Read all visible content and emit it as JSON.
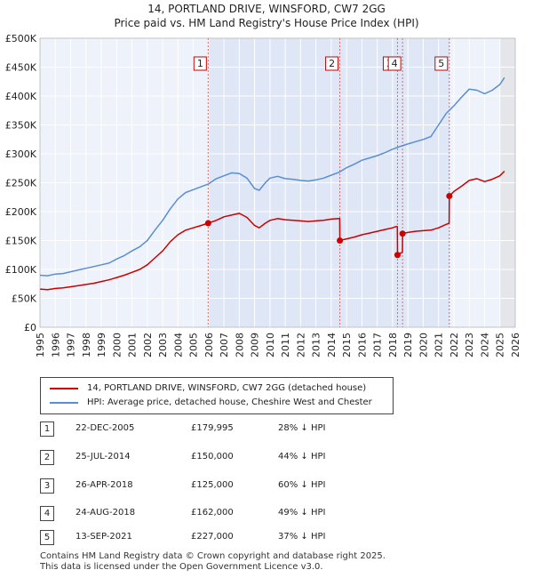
{
  "title_line1": "14, PORTLAND DRIVE, WINSFORD, CW7 2GG",
  "title_line2": "Price paid vs. HM Land Registry's House Price Index (HPI)",
  "legend": {
    "property_label": "14, PORTLAND DRIVE, WINSFORD, CW7 2GG (detached house)",
    "hpi_label": "HPI: Average price, detached house, Cheshire West and Chester",
    "property_color": "#cc0000",
    "hpi_color": "#5b8ed1"
  },
  "transactions": [
    {
      "num": "1",
      "date": "22-DEC-2005",
      "price": "£179,995",
      "hpi": "28% ↓ HPI"
    },
    {
      "num": "2",
      "date": "25-JUL-2014",
      "price": "£150,000",
      "hpi": "44% ↓ HPI"
    },
    {
      "num": "3",
      "date": "26-APR-2018",
      "price": "£125,000",
      "hpi": "60% ↓ HPI"
    },
    {
      "num": "4",
      "date": "24-AUG-2018",
      "price": "£162,000",
      "hpi": "49% ↓ HPI"
    },
    {
      "num": "5",
      "date": "13-SEP-2021",
      "price": "£227,000",
      "hpi": "37% ↓ HPI"
    }
  ],
  "footer_line1": "Contains HM Land Registry data © Crown copyright and database right 2025.",
  "footer_line2": "This data is licensed under the Open Government Licence v3.0.",
  "chart_data": {
    "type": "line",
    "xlim": [
      1995,
      2026
    ],
    "ylim": [
      0,
      500000
    ],
    "x_ticks": [
      1995,
      1996,
      1997,
      1998,
      1999,
      2000,
      2001,
      2002,
      2003,
      2004,
      2005,
      2006,
      2007,
      2008,
      2009,
      2010,
      2011,
      2012,
      2013,
      2014,
      2015,
      2016,
      2017,
      2018,
      2019,
      2020,
      2021,
      2022,
      2023,
      2024,
      2025,
      2026
    ],
    "y_ticks": [
      {
        "value": 0,
        "label": "£0"
      },
      {
        "value": 50000,
        "label": "£50K"
      },
      {
        "value": 100000,
        "label": "£100K"
      },
      {
        "value": 150000,
        "label": "£150K"
      },
      {
        "value": 200000,
        "label": "£200K"
      },
      {
        "value": 250000,
        "label": "£250K"
      },
      {
        "value": 300000,
        "label": "£300K"
      },
      {
        "value": 350000,
        "label": "£350K"
      },
      {
        "value": 400000,
        "label": "£400K"
      },
      {
        "value": 450000,
        "label": "£450K"
      },
      {
        "value": 500000,
        "label": "£500K"
      }
    ],
    "grid": true,
    "sale_markers": [
      {
        "label": "1",
        "x": 2005.97,
        "y": 179995
      },
      {
        "label": "2",
        "x": 2014.56,
        "y": 150000
      },
      {
        "label": "3",
        "x": 2018.32,
        "y": 125000
      },
      {
        "label": "4",
        "x": 2018.65,
        "y": 162000
      },
      {
        "label": "5",
        "x": 2021.7,
        "y": 227000
      }
    ],
    "series": [
      {
        "name": "HPI: Average price, detached house, Cheshire West and Chester",
        "x": [
          1995.0,
          1995.5,
          1996.0,
          1996.5,
          1997.0,
          1997.5,
          1998.0,
          1998.5,
          1999.0,
          1999.5,
          2000.0,
          2000.5,
          2001.0,
          2001.5,
          2002.0,
          2002.5,
          2003.0,
          2003.5,
          2004.0,
          2004.5,
          2005.0,
          2005.5,
          2006.0,
          2006.5,
          2007.0,
          2007.5,
          2008.0,
          2008.5,
          2009.0,
          2009.3,
          2009.7,
          2010.0,
          2010.5,
          2011.0,
          2011.5,
          2012.0,
          2012.5,
          2013.0,
          2013.5,
          2014.0,
          2014.5,
          2015.0,
          2015.5,
          2016.0,
          2016.5,
          2017.0,
          2017.5,
          2018.0,
          2018.5,
          2019.0,
          2019.5,
          2020.0,
          2020.5,
          2021.0,
          2021.5,
          2022.0,
          2022.5,
          2023.0,
          2023.5,
          2024.0,
          2024.5,
          2025.0,
          2025.3
        ],
        "y": [
          90000,
          89000,
          92000,
          93000,
          96000,
          99000,
          102000,
          105000,
          108000,
          111000,
          118000,
          124000,
          132000,
          139000,
          150000,
          168000,
          185000,
          205000,
          222000,
          233000,
          238000,
          243000,
          248000,
          257000,
          262000,
          267000,
          266000,
          258000,
          240000,
          237000,
          250000,
          258000,
          261000,
          257000,
          256000,
          254000,
          253000,
          255000,
          258000,
          263000,
          268000,
          276000,
          282000,
          289000,
          293000,
          297000,
          302000,
          308000,
          313000,
          317000,
          321000,
          325000,
          330000,
          350000,
          370000,
          383000,
          398000,
          412000,
          410000,
          404000,
          410000,
          420000,
          432000
        ]
      },
      {
        "name": "14, PORTLAND DRIVE, WINSFORD, CW7 2GG (detached house)",
        "x": [
          1995.0,
          1995.5,
          1996.0,
          1996.5,
          1997.0,
          1997.5,
          1998.0,
          1998.5,
          1999.0,
          1999.5,
          2000.0,
          2000.5,
          2001.0,
          2001.5,
          2002.0,
          2002.5,
          2003.0,
          2003.5,
          2004.0,
          2004.5,
          2005.0,
          2005.5,
          2005.97,
          2006.5,
          2007.0,
          2007.5,
          2008.0,
          2008.5,
          2009.0,
          2009.3,
          2009.7,
          2010.0,
          2010.5,
          2011.0,
          2011.5,
          2012.0,
          2012.5,
          2013.0,
          2013.5,
          2014.0,
          2014.5,
          2014.55,
          2014.56,
          2015.0,
          2015.5,
          2016.0,
          2016.5,
          2017.0,
          2017.5,
          2018.0,
          2018.2,
          2018.31,
          2018.32,
          2018.5,
          2018.64,
          2018.65,
          2019.0,
          2019.5,
          2020.0,
          2020.5,
          2021.0,
          2021.5,
          2021.69,
          2021.7,
          2022.0,
          2022.5,
          2023.0,
          2023.5,
          2024.0,
          2024.5,
          2025.0,
          2025.3
        ],
        "y": [
          66000,
          65000,
          67000,
          68000,
          70000,
          72000,
          74000,
          76000,
          79000,
          82000,
          86000,
          90000,
          95000,
          100000,
          108000,
          120000,
          132000,
          148000,
          160000,
          168000,
          172000,
          176000,
          179995,
          185000,
          191000,
          194000,
          197000,
          190000,
          176000,
          172000,
          180000,
          185000,
          188000,
          186000,
          185000,
          184000,
          183000,
          184000,
          185000,
          187000,
          188000,
          188000,
          150000,
          153000,
          156000,
          160000,
          163000,
          166000,
          169000,
          172000,
          174000,
          174000,
          125000,
          128000,
          130000,
          162000,
          164000,
          166000,
          167000,
          168000,
          172000,
          178000,
          180000,
          227000,
          235000,
          244000,
          254000,
          257000,
          252000,
          256000,
          262000,
          270000
        ]
      }
    ]
  }
}
